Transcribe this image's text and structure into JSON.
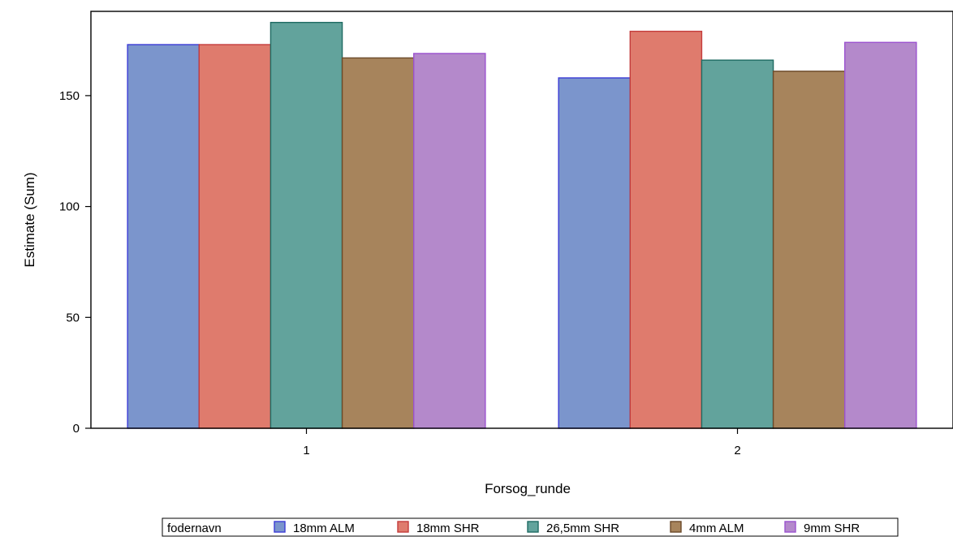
{
  "chart_data": {
    "type": "bar",
    "xlabel": "Forsog_runde",
    "ylabel": "Estimate (Sum)",
    "categories": [
      "1",
      "2"
    ],
    "ylim": [
      0,
      188
    ],
    "yticks": [
      0,
      50,
      100,
      150
    ],
    "legend": {
      "title": "fodernavn",
      "placement": "bottom-center"
    },
    "series": [
      {
        "name": "18mm ALM",
        "values": [
          173,
          158
        ],
        "fill": "#7b95cc",
        "stroke": "#3b3bd6"
      },
      {
        "name": "18mm SHR",
        "values": [
          173,
          179
        ],
        "fill": "#df7b6d",
        "stroke": "#c43c3c"
      },
      {
        "name": "26,5mm SHR",
        "values": [
          183,
          166
        ],
        "fill": "#62a39c",
        "stroke": "#1f6b63"
      },
      {
        "name": "4mm ALM",
        "values": [
          167,
          161
        ],
        "fill": "#a7845c",
        "stroke": "#6b4a2a"
      },
      {
        "name": "9mm SHR",
        "values": [
          169,
          174
        ],
        "fill": "#b489cb",
        "stroke": "#9b52cf"
      }
    ]
  }
}
